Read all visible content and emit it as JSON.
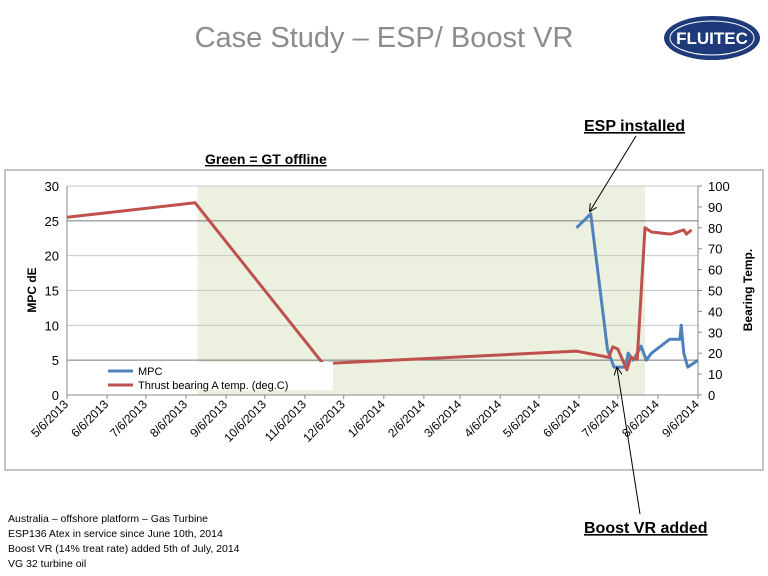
{
  "title": "Case Study – ESP/ Boost VR",
  "logo": {
    "text": "FLUITEC",
    "color": "#1f3a7a"
  },
  "annotations": {
    "green_note": "Green = GT offline",
    "esp_installed": "ESP installed",
    "boost_added": "Boost VR added"
  },
  "notes": [
    "Australia – offshore platform – Gas Turbine",
    "ESP136 Atex in service since June 10th, 2014",
    "Boost VR (14% treat rate) added 5th of July, 2014",
    "VG 32 turbine oil"
  ],
  "chart_data": {
    "type": "line",
    "title": "",
    "ylabel": "MPC dE",
    "y2label": "Bearing Temp.",
    "ylim": [
      0,
      30
    ],
    "y2lim": [
      0,
      100
    ],
    "yticks": [
      "0",
      "5",
      "10",
      "15",
      "20",
      "25",
      "30"
    ],
    "y2ticks": [
      "0",
      "10",
      "20",
      "30",
      "40",
      "50",
      "60",
      "70",
      "80",
      "90",
      "100"
    ],
    "xlim": [
      "2013-05-06",
      "2014-09-06"
    ],
    "xticks": [
      "5/6/2013",
      "6/6/2013",
      "7/6/2013",
      "8/6/2013",
      "9/6/2013",
      "10/6/2013",
      "11/6/2013",
      "12/6/2013",
      "1/6/2014",
      "2/6/2014",
      "3/6/2014",
      "4/6/2014",
      "5/6/2014",
      "6/6/2014",
      "7/6/2014",
      "8/6/2014",
      "9/6/2014"
    ],
    "grid": true,
    "legend": "bottom-left",
    "shaded_region": {
      "start": "2013-08-15",
      "end": "2014-07-27",
      "color": "#ebf1de",
      "meaning": "GT offline"
    },
    "series": [
      {
        "name": "MPC",
        "axis": "left",
        "color": "#4f81bd",
        "x": [
          "2014-06-04",
          "2014-06-15",
          "2014-06-28",
          "2014-07-03",
          "2014-07-12",
          "2014-07-14",
          "2014-07-18",
          "2014-07-24",
          "2014-07-28",
          "2014-08-01",
          "2014-08-15",
          "2014-08-23",
          "2014-08-24",
          "2014-08-26",
          "2014-08-29",
          "2014-09-06"
        ],
        "y": [
          24,
          26,
          6.5,
          4,
          4,
          6,
          5,
          7,
          5,
          6,
          8,
          8,
          10,
          6,
          4,
          5
        ]
      },
      {
        "name": "Thrust bearing A temp. (deg.C)",
        "axis": "right",
        "color": "#c0504d",
        "x": [
          "2013-05-06",
          "2013-08-13",
          "2013-11-20",
          "2014-02-27",
          "2014-06-04",
          "2014-06-21",
          "2014-06-29",
          "2014-07-02",
          "2014-07-06",
          "2014-07-13",
          "2014-07-16",
          "2014-07-21",
          "2014-07-27",
          "2014-08-01",
          "2014-08-16",
          "2014-08-26",
          "2014-08-28",
          "2014-09-01"
        ],
        "y": [
          85,
          92,
          15,
          18,
          21,
          19,
          18,
          23,
          22,
          12,
          18,
          17,
          80,
          78,
          77,
          79,
          77,
          79
        ]
      }
    ]
  }
}
